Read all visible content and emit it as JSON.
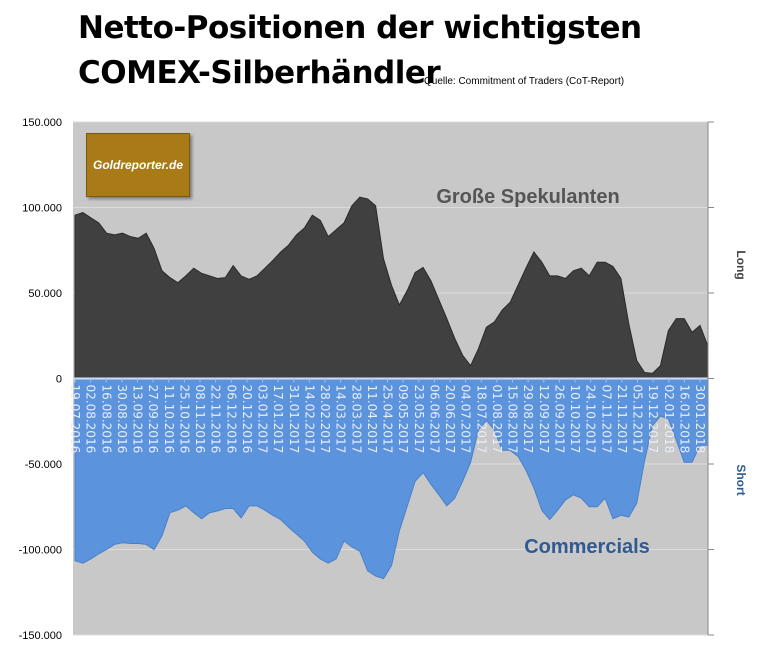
{
  "title_line1": "Netto-Positionen der wichtigsten",
  "title_line2": "COMEX-Silberhändler",
  "source": "Quelle: Commitment of Traders (CoT-Report)",
  "logo_text": "Goldreporter.de",
  "chart_data": {
    "type": "area",
    "title": "Netto-Positionen der wichtigsten COMEX-Silberhändler",
    "ylim": [
      -150000,
      150000
    ],
    "yticks": [
      150000,
      100000,
      50000,
      0,
      -50000,
      -100000,
      -150000
    ],
    "ytick_labels": [
      "150.000",
      "100.000",
      "50.000",
      "0",
      "-50.000",
      "-100.000",
      "-150.000"
    ],
    "right_labels": {
      "long": "Long",
      "short": "Short"
    },
    "x_tick_labels": [
      "19.07.2016",
      "02.08.2016",
      "16.08.2016",
      "30.08.2016",
      "13.09.2016",
      "27.09.2016",
      "11.10.2016",
      "25.10.2016",
      "08.11.2016",
      "22.11.2016",
      "06.12.2016",
      "20.12.2016",
      "03.01.2017",
      "17.01.2017",
      "31.01.2017",
      "14.02.2017",
      "28.02.2017",
      "14.03.2017",
      "28.03.2017",
      "11.04.2017",
      "25.04.2017",
      "09.05.2017",
      "23.05.2017",
      "06.06.2017",
      "20.06.2017",
      "04.07.2017",
      "18.07.2017",
      "01.08.2017",
      "15.08.2017",
      "29.08.2017",
      "12.09.2017",
      "26.09.2017",
      "10.10.2017",
      "24.10.2017",
      "07.11.2017",
      "21.11.2017",
      "05.12.2017",
      "19.12.2017",
      "02.01.2018",
      "16.01.2018",
      "30.01.2018"
    ],
    "x_frequency": "weekly",
    "series": [
      {
        "name": "Große Spekulanten",
        "color": "#404040",
        "values": [
          95500,
          97000,
          94000,
          91000,
          85000,
          84000,
          85000,
          83000,
          82000,
          85000,
          76000,
          63000,
          59000,
          56000,
          60000,
          64500,
          61500,
          60000,
          58500,
          59000,
          66000,
          60000,
          58000,
          60000,
          64500,
          69000,
          74000,
          78000,
          84000,
          88000,
          95500,
          92500,
          83000,
          87000,
          91000,
          101000,
          106000,
          105000,
          101000,
          70000,
          54500,
          43000,
          51500,
          62000,
          65000,
          57000,
          46000,
          35000,
          23500,
          13500,
          7500,
          17500,
          30000,
          33000,
          40000,
          44500,
          54500,
          64500,
          74000,
          68000,
          60000,
          60000,
          58500,
          63000,
          64500,
          60000,
          68000,
          68000,
          65500,
          58500,
          32000,
          10500,
          3500,
          3000,
          7500,
          28000,
          35000,
          35000,
          27000,
          31000,
          19000
        ]
      },
      {
        "name": "Commercials",
        "color": "#5b93dd",
        "values": [
          -106500,
          -108000,
          -105500,
          -102500,
          -100000,
          -97000,
          -96000,
          -96500,
          -96500,
          -97000,
          -100000,
          -92000,
          -78500,
          -77000,
          -74500,
          -78500,
          -82000,
          -78500,
          -77500,
          -76000,
          -76000,
          -81500,
          -74500,
          -74500,
          -77000,
          -80000,
          -82500,
          -87000,
          -91000,
          -95000,
          -101500,
          -105500,
          -108000,
          -105500,
          -95000,
          -98500,
          -101000,
          -112500,
          -115500,
          -117000,
          -109500,
          -89000,
          -74500,
          -60000,
          -55000,
          -62000,
          -68000,
          -74500,
          -70000,
          -60000,
          -49000,
          -30000,
          -24500,
          -30000,
          -42000,
          -42000,
          -45500,
          -53500,
          -64000,
          -77000,
          -82500,
          -77000,
          -71000,
          -68000,
          -70000,
          -75000,
          -75000,
          -70000,
          -82000,
          -80000,
          -81000,
          -73000,
          -48000,
          -27500,
          -22000,
          -23500,
          -36000,
          -49000,
          -49000,
          -39000,
          -39000
        ]
      }
    ],
    "annotations": [
      "Große Spekulanten",
      "Commercials"
    ],
    "grid": true
  }
}
